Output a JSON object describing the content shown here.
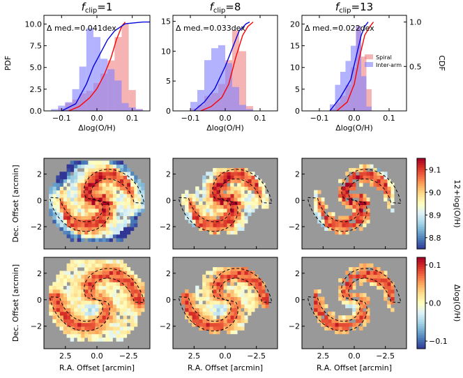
{
  "chart_data": {
    "type": "figure",
    "top_row": {
      "type": "histogram+cdf",
      "ylabel_left": "PDF",
      "ylabel_right": "CDF",
      "xlabel": "Δlog(O/H)",
      "xlim": [
        -0.15,
        0.15
      ],
      "xticks": [
        -0.1,
        0.0,
        0.1
      ],
      "xtick_labels": [
        "−0.1",
        "0.0",
        "0.1"
      ],
      "cdf_ticks": [
        "0.5",
        "1.0"
      ],
      "legend": [
        "Spiral",
        "Inter-arm"
      ],
      "colors": {
        "spiral": "#f08080",
        "interarm": "#7f7fff",
        "spiral_cdf": "#ff0000",
        "interarm_cdf": "#0000dd"
      },
      "panels": [
        {
          "title_f": "f",
          "title_sub": "clip",
          "title_val": "=1",
          "annotation": "Δ med.=0.041dex",
          "ylim": [
            0,
            11
          ],
          "yticks": [
            0,
            2.5,
            5,
            7.5,
            10
          ],
          "ytick_labels": [
            "0.0",
            "2.5",
            "5.0",
            "7.5",
            "10.0"
          ],
          "bin_edges": [
            -0.13,
            -0.11,
            -0.09,
            -0.07,
            -0.05,
            -0.03,
            -0.01,
            0.01,
            0.03,
            0.05,
            0.07,
            0.09,
            0.11,
            0.13
          ],
          "spiral": [
            0,
            0.3,
            0.9,
            1.3,
            2.0,
            2.3,
            3.2,
            4.3,
            5.8,
            8.5,
            10.0,
            2.4,
            0.2
          ],
          "interarm": [
            0.2,
            0.6,
            1.0,
            2.5,
            5.1,
            9.5,
            8.5,
            6.0,
            4.8,
            3.5,
            0.9,
            0.4,
            0.2
          ],
          "spiral_cdf": [
            [
              -0.08,
              0
            ],
            [
              -0.05,
              0.05
            ],
            [
              -0.02,
              0.15
            ],
            [
              0.0,
              0.25
            ],
            [
              0.02,
              0.4
            ],
            [
              0.04,
              0.6
            ],
            [
              0.055,
              0.8
            ],
            [
              0.07,
              0.95
            ],
            [
              0.08,
              1.0
            ]
          ],
          "interarm_cdf": [
            [
              -0.1,
              0
            ],
            [
              -0.06,
              0.08
            ],
            [
              -0.03,
              0.3
            ],
            [
              -0.01,
              0.5
            ],
            [
              0.01,
              0.65
            ],
            [
              0.03,
              0.8
            ],
            [
              0.05,
              0.9
            ],
            [
              0.08,
              0.98
            ],
            [
              0.13,
              1.0
            ],
            [
              0.15,
              1.0
            ]
          ]
        },
        {
          "title_f": "f",
          "title_sub": "clip",
          "title_val": "=8",
          "annotation": "Δ med.=0.033dex",
          "ylim": [
            0,
            16
          ],
          "yticks": [
            0,
            5,
            10,
            15
          ],
          "ytick_labels": [
            "0",
            "5",
            "10",
            "15"
          ],
          "bin_edges": [
            -0.1,
            -0.08,
            -0.06,
            -0.04,
            -0.02,
            0.0,
            0.02,
            0.04,
            0.06,
            0.08
          ],
          "spiral": [
            0.4,
            1.0,
            2.5,
            3.0,
            4.5,
            8.5,
            13.5,
            10.0,
            0.8
          ],
          "interarm": [
            1.5,
            3.5,
            8.5,
            10.5,
            11.0,
            8.0,
            4.0,
            1.0,
            0.3
          ],
          "spiral_cdf": [
            [
              -0.07,
              0
            ],
            [
              -0.04,
              0.05
            ],
            [
              -0.01,
              0.15
            ],
            [
              0.01,
              0.3
            ],
            [
              0.03,
              0.6
            ],
            [
              0.05,
              0.85
            ],
            [
              0.065,
              0.95
            ],
            [
              0.08,
              1.0
            ]
          ],
          "interarm_cdf": [
            [
              -0.09,
              0
            ],
            [
              -0.06,
              0.1
            ],
            [
              -0.03,
              0.25
            ],
            [
              0.0,
              0.5
            ],
            [
              0.02,
              0.7
            ],
            [
              0.04,
              0.9
            ],
            [
              0.06,
              0.98
            ],
            [
              0.07,
              1.0
            ]
          ]
        },
        {
          "title_f": "f",
          "title_sub": "clip",
          "title_val": "=13",
          "annotation": "Δ med.=0.022dex",
          "ylim": [
            0,
            22
          ],
          "yticks": [
            0,
            5,
            10,
            15,
            20
          ],
          "ytick_labels": [
            "0",
            "5",
            "10",
            "15",
            "20"
          ],
          "bin_edges": [
            -0.07,
            -0.055,
            -0.04,
            -0.025,
            -0.01,
            0.005,
            0.02,
            0.035,
            0.05
          ],
          "spiral": [
            0.5,
            2.0,
            3.5,
            6.0,
            10.0,
            19.5,
            12.5,
            5.0
          ],
          "interarm": [
            1.5,
            6.0,
            9.0,
            11.5,
            15.0,
            19.5,
            8.0,
            1.0
          ],
          "spiral_cdf": [
            [
              -0.05,
              0
            ],
            [
              -0.02,
              0.1
            ],
            [
              0.0,
              0.3
            ],
            [
              0.015,
              0.6
            ],
            [
              0.03,
              0.85
            ],
            [
              0.045,
              0.95
            ],
            [
              0.055,
              1.0
            ]
          ],
          "interarm_cdf": [
            [
              -0.07,
              0
            ],
            [
              -0.04,
              0.15
            ],
            [
              -0.01,
              0.35
            ],
            [
              0.005,
              0.6
            ],
            [
              0.02,
              0.85
            ],
            [
              0.03,
              0.95
            ],
            [
              0.04,
              1.0
            ]
          ]
        }
      ]
    },
    "map_rows": {
      "xlabel": "R.A. Offset [arcmin]",
      "ylabel": "Dec. Offset [arcmin]",
      "xlim": [
        4.2,
        -4.2
      ],
      "ylim": [
        -3.7,
        3.2
      ],
      "xticks": [
        2.5,
        0.0,
        -2.5
      ],
      "xtick_labels": [
        "2.5",
        "0.0",
        "−2.5"
      ],
      "yticks": [
        -2,
        0,
        2
      ],
      "ytick_labels": [
        "−2",
        "0",
        "2"
      ],
      "background": "#999999",
      "rows": [
        {
          "quantity": "12+log(O/H)",
          "colorbar_label": "12+log(O/H)",
          "clim": [
            8.75,
            9.15
          ],
          "colorbar_ticks": [
            8.8,
            8.9,
            9.0,
            9.1
          ],
          "colorbar_tick_labels": [
            "8.8",
            "8.9",
            "9.0",
            "9.1"
          ],
          "colormap": "RdYlBu_r"
        },
        {
          "quantity": "Δlog(O/H)",
          "colorbar_label": "Δlog(O/H)",
          "clim": [
            -0.12,
            0.12
          ],
          "colorbar_ticks": [
            -0.1,
            0.0,
            0.1
          ],
          "colorbar_tick_labels": [
            "−0.1",
            "0.0",
            "0.1"
          ],
          "colormap": "RdYlBu_r"
        }
      ],
      "columns": [
        {
          "f_clip": 1,
          "mask_radius": 3.6
        },
        {
          "f_clip": 8,
          "mask_radius": 2.6
        },
        {
          "f_clip": 13,
          "mask_radius": 2.2
        }
      ],
      "arm_outlines": "dashed black spiral arm contours"
    }
  }
}
